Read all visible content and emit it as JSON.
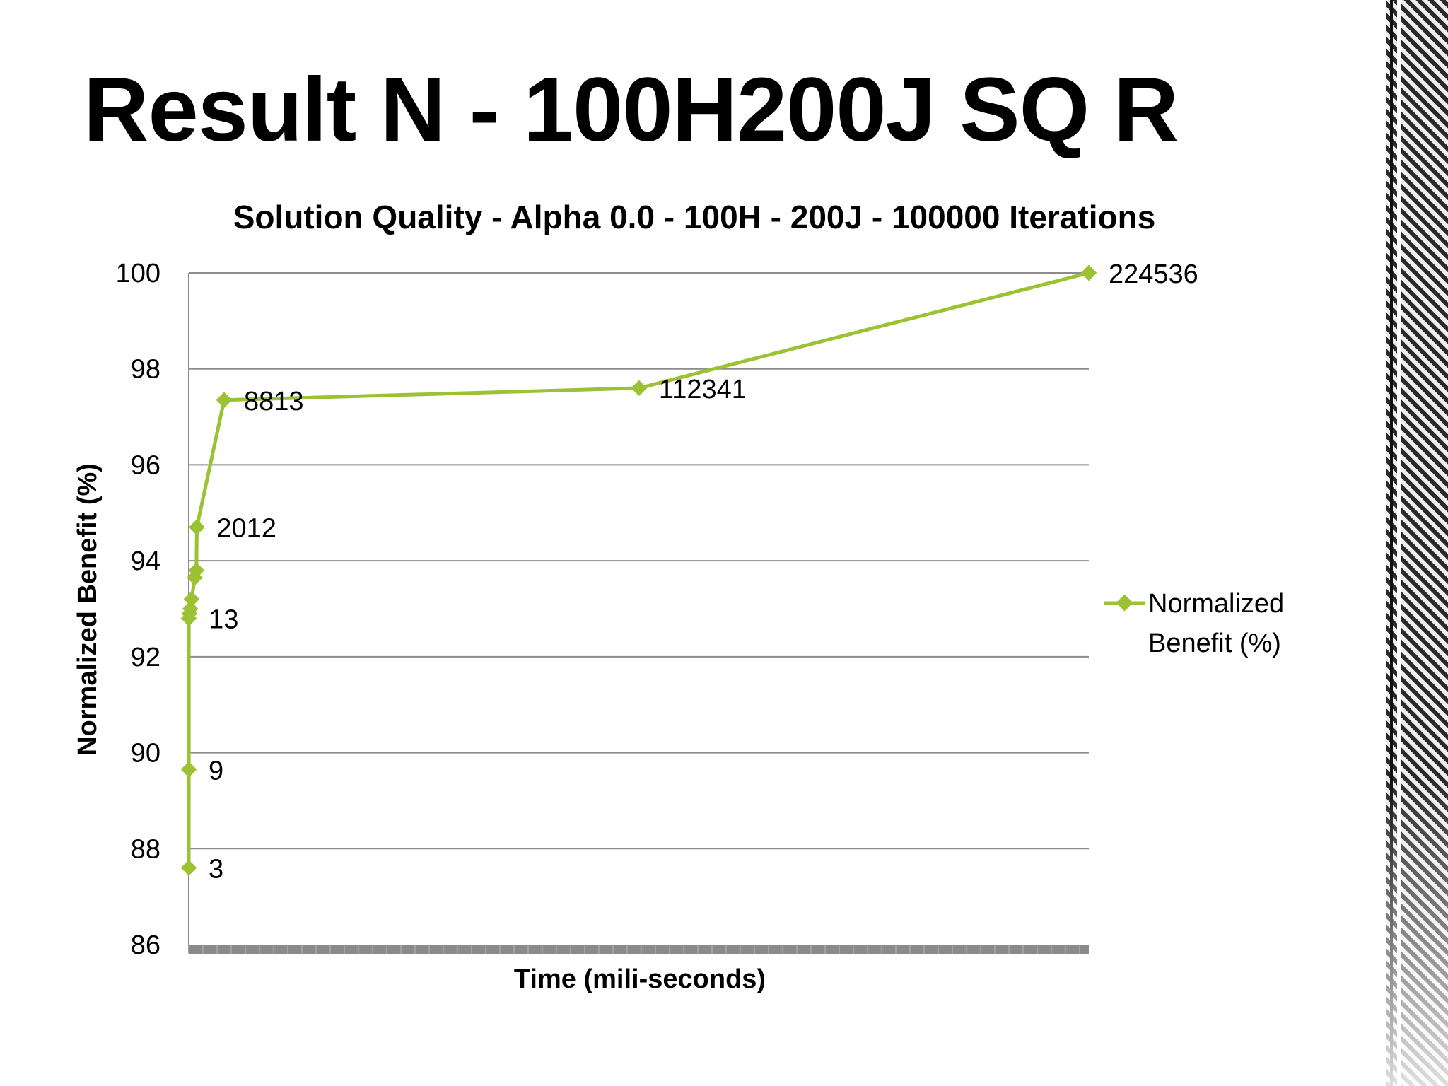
{
  "slide": {
    "title": "Result N - 100H200J SQ R"
  },
  "chart_data": {
    "type": "line",
    "title": "Solution Quality - Alpha 0.0 - 100H - 200J - 100000 Iterations",
    "xlabel": "Time (mili-seconds)",
    "ylabel": "Normalized Benefit (%)",
    "ylim": [
      86,
      100
    ],
    "yticks": [
      "86",
      "88",
      "90",
      "92",
      "94",
      "96",
      "98",
      "100"
    ],
    "xlim": [
      0,
      224536
    ],
    "grid": true,
    "legend_position": "right",
    "color": "#9BC233",
    "series": [
      {
        "name": "Normalized Benefit (%)",
        "points": [
          {
            "x": 3,
            "y": 87.6,
            "label": "3"
          },
          {
            "x": 9,
            "y": 89.65,
            "label": "9"
          },
          {
            "x": 13,
            "y": 92.8,
            "label": "13"
          },
          {
            "x": 150,
            "y": 92.9,
            "label": ""
          },
          {
            "x": 400,
            "y": 93.0,
            "label": ""
          },
          {
            "x": 700,
            "y": 93.2,
            "label": ""
          },
          {
            "x": 1500,
            "y": 93.65,
            "label": ""
          },
          {
            "x": 1900,
            "y": 93.8,
            "label": ""
          },
          {
            "x": 2012,
            "y": 94.7,
            "label": "2012"
          },
          {
            "x": 8813,
            "y": 97.35,
            "label": "8813"
          },
          {
            "x": 112341,
            "y": 97.6,
            "label": "112341"
          },
          {
            "x": 224536,
            "y": 100,
            "label": "224536"
          }
        ]
      }
    ],
    "legend": {
      "lines": [
        "Normalized",
        "Benefit (%)"
      ]
    }
  }
}
